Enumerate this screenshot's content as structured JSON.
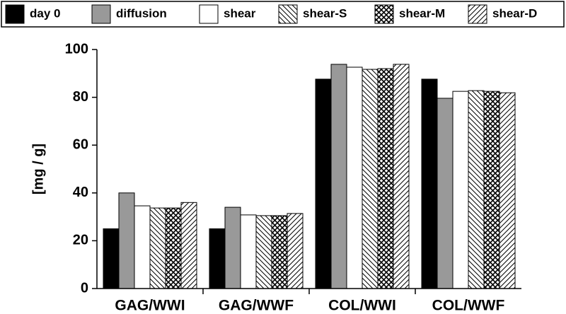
{
  "chart_data": {
    "type": "bar",
    "categories": [
      "GAG/WWI",
      "GAG/WWF",
      "COL/WWI",
      "COL/WWF"
    ],
    "y_label": "[mg / g]",
    "ylim": [
      0,
      100
    ],
    "yticks": [
      0,
      20,
      40,
      60,
      80,
      100
    ],
    "series": [
      {
        "name": "day 0",
        "color": "#000000",
        "values": [
          25,
          25,
          87.6,
          87.6
        ]
      },
      {
        "name": "diffusion",
        "color": "#999999",
        "values": [
          40,
          34,
          93.8,
          79.6
        ]
      },
      {
        "name": "shear",
        "color": "#ffffff",
        "values": [
          34.6,
          30.8,
          92.6,
          82.5
        ]
      },
      {
        "name": "shear-S",
        "color": "#ffffff",
        "hatch": "backslash",
        "values": [
          33.7,
          30.5,
          91.7,
          82.8
        ]
      },
      {
        "name": "shear-M",
        "color": "#ffffff",
        "hatch": "cross",
        "values": [
          33.7,
          30.5,
          92,
          82.5
        ]
      },
      {
        "name": "shear-D",
        "color": "#ffffff",
        "hatch": "slash",
        "values": [
          36,
          31.4,
          93.8,
          81.9
        ]
      }
    ],
    "legend": "top"
  }
}
